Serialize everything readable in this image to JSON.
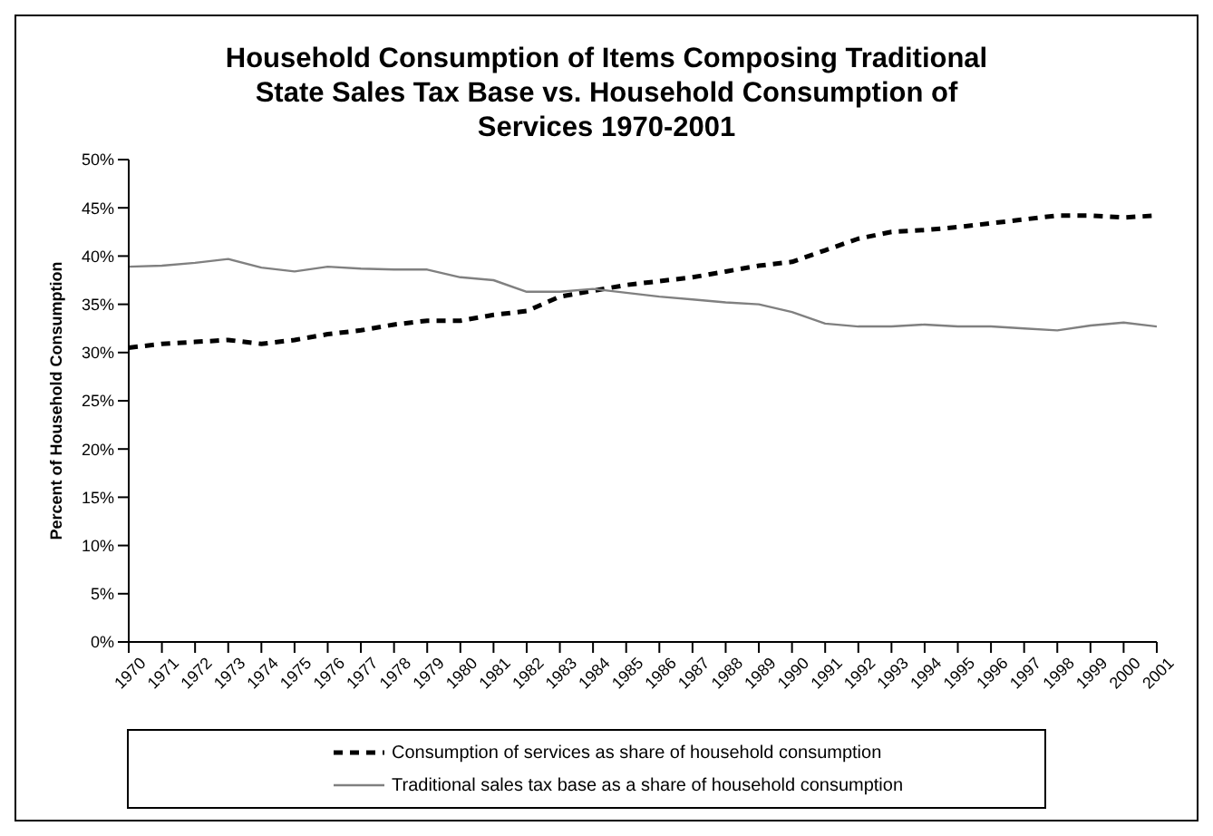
{
  "chart_data": {
    "type": "line",
    "title": "Household Consumption of Items Composing Traditional State Sales Tax Base vs. Household Consumption of Services 1970-2001",
    "ylabel": "Percent of Household Consumption",
    "categories": [
      "1970",
      "1971",
      "1972",
      "1973",
      "1974",
      "1975",
      "1976",
      "1977",
      "1978",
      "1979",
      "1980",
      "1981",
      "1982",
      "1983",
      "1984",
      "1985",
      "1986",
      "1987",
      "1988",
      "1989",
      "1990",
      "1991",
      "1992",
      "1993",
      "1994",
      "1995",
      "1996",
      "1997",
      "1998",
      "1999",
      "2000",
      "2001"
    ],
    "series": [
      {
        "name": "Consumption of services as share of household consumption",
        "color": "#000000",
        "line_style": "dashed",
        "values": [
          30.5,
          30.9,
          31.1,
          31.3,
          30.9,
          31.3,
          31.9,
          32.3,
          32.9,
          33.3,
          33.3,
          33.9,
          34.3,
          35.8,
          36.4,
          37.0,
          37.4,
          37.8,
          38.4,
          39.0,
          39.4,
          40.6,
          41.8,
          42.5,
          42.7,
          43.0,
          43.4,
          43.8,
          44.2,
          44.2,
          44.0,
          44.2
        ]
      },
      {
        "name": "Traditional sales tax base as a share of household consumption",
        "color": "#808080",
        "line_style": "solid",
        "values": [
          38.9,
          39.0,
          39.3,
          39.7,
          38.8,
          38.4,
          38.9,
          38.7,
          38.6,
          38.6,
          37.8,
          37.5,
          36.3,
          36.3,
          36.6,
          36.2,
          35.8,
          35.5,
          35.2,
          35.0,
          34.2,
          33.0,
          32.7,
          32.7,
          32.9,
          32.7,
          32.7,
          32.5,
          32.3,
          32.8,
          33.1,
          32.7
        ]
      }
    ],
    "ylim": [
      0,
      50
    ],
    "yticks": [
      {
        "value": 0,
        "label": "0%"
      },
      {
        "value": 5,
        "label": "5%"
      },
      {
        "value": 10,
        "label": "10%"
      },
      {
        "value": 15,
        "label": "15%"
      },
      {
        "value": 20,
        "label": "20%"
      },
      {
        "value": 25,
        "label": "25%"
      },
      {
        "value": 30,
        "label": "30%"
      },
      {
        "value": 35,
        "label": "35%"
      },
      {
        "value": 40,
        "label": "40%"
      },
      {
        "value": 45,
        "label": "45%"
      },
      {
        "value": 50,
        "label": "50%"
      }
    ],
    "grid": false,
    "legend": "bottom",
    "marker": "none"
  }
}
